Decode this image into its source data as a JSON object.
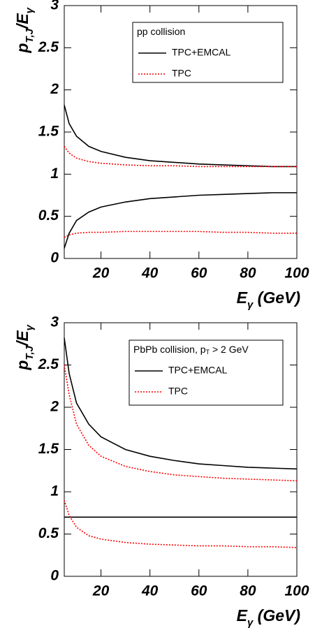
{
  "chart_data": [
    {
      "type": "line",
      "legend_title": [
        "pp collision"
      ],
      "ylabel": [
        "p",
        "T,J",
        "/E",
        "γ"
      ],
      "xlabel": [
        "E",
        "γ",
        " (GeV)"
      ],
      "x": [
        5,
        7,
        10,
        15,
        20,
        30,
        40,
        50,
        60,
        70,
        80,
        90,
        100
      ],
      "xlim": [
        5,
        100
      ],
      "xticks": [
        20,
        40,
        60,
        80,
        100
      ],
      "ylim": [
        0,
        3
      ],
      "yticks": [
        0,
        0.5,
        1,
        1.5,
        2,
        2.5,
        3
      ],
      "series": [
        {
          "name": "TPC+EMCAL",
          "color": "#000000",
          "dash": false,
          "values": [
            1.82,
            1.6,
            1.45,
            1.33,
            1.27,
            1.2,
            1.16,
            1.14,
            1.12,
            1.11,
            1.1,
            1.09,
            1.09
          ]
        },
        {
          "name": "TPC",
          "color": "#ff0000",
          "dash": true,
          "values": [
            1.33,
            1.25,
            1.19,
            1.15,
            1.13,
            1.11,
            1.1,
            1.1,
            1.09,
            1.09,
            1.09,
            1.09,
            1.09
          ]
        },
        {
          "color": "#000000",
          "dash": false,
          "values": [
            0.12,
            0.3,
            0.45,
            0.55,
            0.61,
            0.67,
            0.71,
            0.73,
            0.75,
            0.76,
            0.77,
            0.78,
            0.78
          ]
        },
        {
          "color": "#ff0000",
          "dash": true,
          "values": [
            0.25,
            0.28,
            0.3,
            0.31,
            0.31,
            0.32,
            0.32,
            0.32,
            0.32,
            0.31,
            0.31,
            0.3,
            0.3
          ]
        }
      ]
    },
    {
      "type": "line",
      "legend_title": [
        "PbPb collision, p",
        "T",
        " > 2 GeV"
      ],
      "ylabel": [
        "p",
        "T,J",
        "/E",
        "γ"
      ],
      "xlabel": [
        "E",
        "γ",
        " (GeV)"
      ],
      "x": [
        5,
        7,
        10,
        15,
        20,
        30,
        40,
        50,
        60,
        70,
        80,
        90,
        100
      ],
      "xlim": [
        5,
        100
      ],
      "xticks": [
        20,
        40,
        60,
        80,
        100
      ],
      "ylim": [
        0,
        3
      ],
      "yticks": [
        0,
        0.5,
        1,
        1.5,
        2,
        2.5,
        3
      ],
      "series": [
        {
          "name": "TPC+EMCAL",
          "color": "#000000",
          "dash": false,
          "values": [
            2.82,
            2.4,
            2.05,
            1.8,
            1.65,
            1.5,
            1.42,
            1.37,
            1.33,
            1.31,
            1.29,
            1.28,
            1.27
          ]
        },
        {
          "name": "TPC",
          "color": "#ff0000",
          "dash": true,
          "values": [
            2.5,
            2.15,
            1.8,
            1.55,
            1.42,
            1.3,
            1.24,
            1.2,
            1.18,
            1.16,
            1.15,
            1.14,
            1.13
          ]
        },
        {
          "color": "#000000",
          "dash": false,
          "values": [
            0.7,
            0.7,
            0.7,
            0.7,
            0.7,
            0.7,
            0.7,
            0.7,
            0.7,
            0.7,
            0.7,
            0.7,
            0.7
          ]
        },
        {
          "color": "#ff0000",
          "dash": true,
          "values": [
            0.9,
            0.72,
            0.58,
            0.48,
            0.44,
            0.4,
            0.38,
            0.37,
            0.36,
            0.36,
            0.35,
            0.35,
            0.34
          ]
        }
      ]
    }
  ]
}
